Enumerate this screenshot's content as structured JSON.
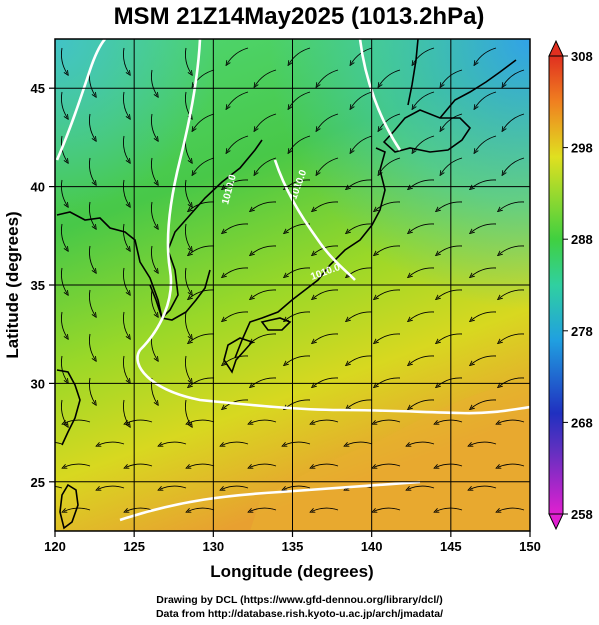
{
  "title": "MSM 21Z14May2025 (1013.2hPa)",
  "credit_line1": "Drawing by DCL (https://www.gfd-dennou.org/library/dcl/)",
  "credit_line2": "Data from http://database.rish.kyoto-u.ac.jp/arch/jmadata/",
  "chart_data": {
    "type": "heatmap",
    "title": "MSM 21Z14May2025 (1013.2hPa)",
    "xlabel": "Longitude (degrees)",
    "ylabel": "Latitude  (degrees)",
    "xlim": [
      120,
      150
    ],
    "ylim": [
      22.5,
      47.5
    ],
    "x_ticks": [
      120,
      125,
      130,
      135,
      140,
      145,
      150
    ],
    "x_tick_labels": [
      "120",
      "125",
      "130",
      "135",
      "140",
      "145",
      "150"
    ],
    "y_ticks": [
      25,
      30,
      35,
      40,
      45
    ],
    "y_tick_labels": [
      "25",
      "30",
      "35",
      "40",
      "45"
    ],
    "grid": true,
    "colorbar": {
      "min": 258,
      "max": 308,
      "ticks": [
        258,
        268,
        278,
        288,
        298,
        308
      ],
      "tick_labels": [
        "258",
        "268",
        "278",
        "288",
        "298",
        "308"
      ],
      "colors": [
        "#e020d0",
        "#2030c0",
        "#20a0e0",
        "#30d0a0",
        "#40d040",
        "#e0e020",
        "#f08020",
        "#e03020"
      ]
    },
    "contour_labels": [
      "1010.0",
      "1010.0",
      "1010.0"
    ]
  }
}
